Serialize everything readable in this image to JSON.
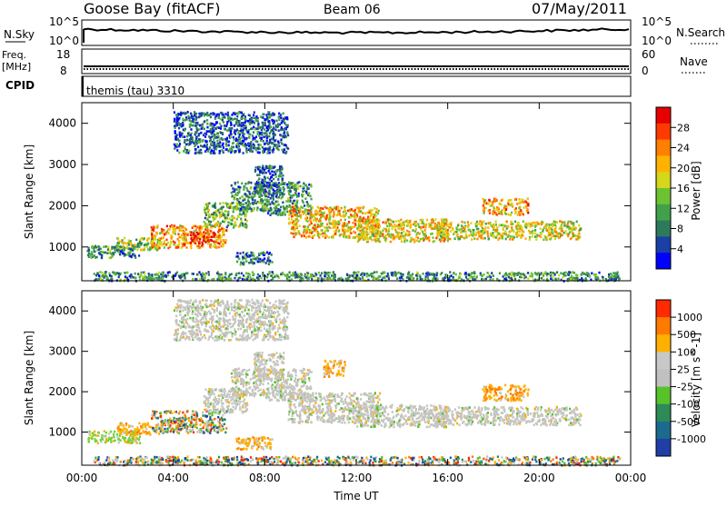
{
  "header": {
    "station": "Goose Bay (fitACF)",
    "beam": "Beam 06",
    "date": "07/May/2011"
  },
  "noise_panel": {
    "left_label": "N.Sky",
    "left_ticks": [
      "10^5",
      "10^0"
    ],
    "right_label": "N.Search",
    "right_ticks": [
      "10^5",
      "10^0"
    ]
  },
  "freq_panel": {
    "left_label_1": "Freq.",
    "left_label_2": "[MHz]",
    "left_ticks": [
      "18",
      "8"
    ],
    "right_label": "Nave",
    "right_ticks": [
      "60",
      "0"
    ]
  },
  "cpid_panel": {
    "label": "CPID",
    "program": "themis (tau) 3310"
  },
  "x_axis": {
    "label": "Time UT",
    "tick_labels": [
      "00:00",
      "04:00",
      "08:00",
      "12:00",
      "16:00",
      "20:00",
      "00:00"
    ]
  },
  "chart_data": [
    {
      "type": "heatmap",
      "name": "power",
      "ylabel": "Slant Range [km]",
      "yticks": [
        1000,
        2000,
        3000,
        4000
      ],
      "ylim": [
        180,
        4500
      ],
      "xlim_hours": [
        0,
        24
      ],
      "colorbar": {
        "label": "Power [dB]",
        "ticks": [
          "28",
          "24",
          "20",
          "16",
          "12",
          "8",
          "4"
        ],
        "colors": [
          "#0000ff",
          "#1a3fa6",
          "#2d7a5a",
          "#41a14b",
          "#6dc233",
          "#d6d61a",
          "#ffb300",
          "#ff7f00",
          "#ff3a00",
          "#e60000"
        ]
      },
      "regions": [
        {
          "t0": 0.2,
          "t1": 2.5,
          "r0": 750,
          "r1": 1050,
          "level": 0.3
        },
        {
          "t0": 1.5,
          "t1": 3.5,
          "r0": 950,
          "r1": 1250,
          "level": 0.45
        },
        {
          "t0": 3.0,
          "t1": 6.3,
          "r0": 1000,
          "r1": 1550,
          "level": 0.7
        },
        {
          "t0": 4.7,
          "t1": 5.8,
          "r0": 1100,
          "r1": 1400,
          "level": 0.95
        },
        {
          "t0": 5.3,
          "t1": 7.2,
          "r0": 1500,
          "r1": 2100,
          "level": 0.4
        },
        {
          "t0": 6.5,
          "t1": 8.0,
          "r0": 1900,
          "r1": 2600,
          "level": 0.3
        },
        {
          "t0": 7.5,
          "t1": 8.8,
          "r0": 2300,
          "r1": 3000,
          "level": 0.2
        },
        {
          "t0": 8.0,
          "t1": 10.0,
          "r0": 1800,
          "r1": 2600,
          "level": 0.3
        },
        {
          "t0": 9.0,
          "t1": 13.0,
          "r0": 1250,
          "r1": 2000,
          "level": 0.65
        },
        {
          "t0": 12.0,
          "t1": 16.0,
          "r0": 1150,
          "r1": 1700,
          "level": 0.6
        },
        {
          "t0": 15.5,
          "t1": 21.8,
          "r0": 1200,
          "r1": 1650,
          "level": 0.55
        },
        {
          "t0": 17.5,
          "t1": 19.5,
          "r0": 1800,
          "r1": 2200,
          "level": 0.7
        },
        {
          "t0": 6.7,
          "t1": 8.3,
          "r0": 600,
          "r1": 900,
          "level": 0.25
        },
        {
          "t0": 4.0,
          "t1": 9.0,
          "r0": 3300,
          "r1": 4300,
          "level": 0.2
        },
        {
          "t0": 0.5,
          "t1": 23.5,
          "r0": 200,
          "r1": 420,
          "level": 0.3
        }
      ]
    },
    {
      "type": "heatmap",
      "name": "velocity",
      "ylabel": "Slant Range [km]",
      "yticks": [
        1000,
        2000,
        3000,
        4000
      ],
      "ylim": [
        180,
        4500
      ],
      "xlim_hours": [
        0,
        24
      ],
      "colorbar": {
        "label": "Velocity [m s^-1]",
        "ticks": [
          "1000",
          "500",
          "100",
          "25",
          "-25",
          "-100",
          "-500",
          "-1000"
        ],
        "colors": [
          "#1f3fa6",
          "#1c6b8e",
          "#2e8b57",
          "#58c22a",
          "#c0c0c0",
          "#c8c8c8",
          "#ffb000",
          "#ff7a00",
          "#ff2a00"
        ]
      },
      "regions": [
        {
          "t0": 0.2,
          "t1": 2.5,
          "r0": 750,
          "r1": 1050,
          "cls": "green"
        },
        {
          "t0": 1.5,
          "t1": 3.5,
          "r0": 950,
          "r1": 1250,
          "cls": "orange"
        },
        {
          "t0": 3.0,
          "t1": 6.3,
          "r0": 1000,
          "r1": 1550,
          "cls": "mixed"
        },
        {
          "t0": 5.3,
          "t1": 7.2,
          "r0": 1500,
          "r1": 2100,
          "cls": "grey"
        },
        {
          "t0": 6.5,
          "t1": 8.0,
          "r0": 1900,
          "r1": 2600,
          "cls": "grey"
        },
        {
          "t0": 7.5,
          "t1": 8.8,
          "r0": 2300,
          "r1": 3000,
          "cls": "grey"
        },
        {
          "t0": 8.0,
          "t1": 10.0,
          "r0": 1800,
          "r1": 2600,
          "cls": "grey"
        },
        {
          "t0": 9.0,
          "t1": 13.0,
          "r0": 1250,
          "r1": 2000,
          "cls": "grey"
        },
        {
          "t0": 12.0,
          "t1": 16.0,
          "r0": 1150,
          "r1": 1700,
          "cls": "grey"
        },
        {
          "t0": 15.5,
          "t1": 21.8,
          "r0": 1200,
          "r1": 1650,
          "cls": "grey"
        },
        {
          "t0": 17.5,
          "t1": 19.5,
          "r0": 1800,
          "r1": 2200,
          "cls": "orange"
        },
        {
          "t0": 10.5,
          "t1": 11.5,
          "r0": 2400,
          "r1": 2800,
          "cls": "orange"
        },
        {
          "t0": 6.7,
          "t1": 8.3,
          "r0": 600,
          "r1": 900,
          "cls": "orange"
        },
        {
          "t0": 4.0,
          "t1": 9.0,
          "r0": 3300,
          "r1": 4300,
          "cls": "grey"
        },
        {
          "t0": 0.5,
          "t1": 23.5,
          "r0": 200,
          "r1": 420,
          "cls": "mixed"
        }
      ]
    }
  ]
}
